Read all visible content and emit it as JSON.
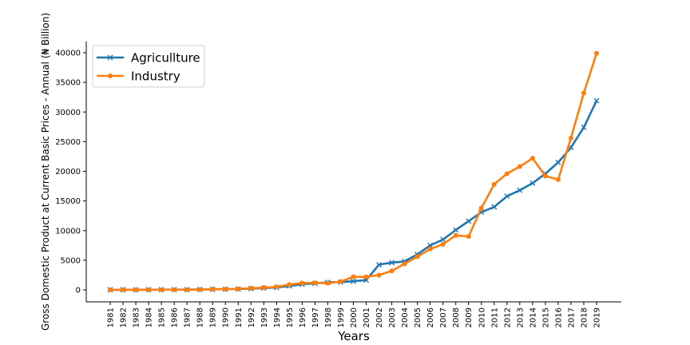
{
  "chart_data": {
    "type": "line",
    "xlabel": "Years",
    "ylabel": "Gross Domestic Product at Current Basic Prices - Annual (₦ Billion)",
    "x": [
      "1981",
      "1982",
      "1983",
      "1984",
      "1985",
      "1986",
      "1987",
      "1988",
      "1989",
      "1990",
      "1991",
      "1992",
      "1993",
      "1994",
      "1995",
      "1996",
      "1997",
      "1998",
      "1999",
      "2000",
      "2001",
      "2002",
      "2003",
      "2004",
      "2005",
      "2006",
      "2007",
      "2008",
      "2009",
      "2010",
      "2011",
      "2012",
      "2013",
      "2014",
      "2015",
      "2016",
      "2017",
      "2018",
      "2019"
    ],
    "ylim": [
      0,
      40000
    ],
    "yticks": [
      0,
      5000,
      10000,
      15000,
      20000,
      25000,
      30000,
      35000,
      40000
    ],
    "grid": false,
    "legend": "upper-left",
    "series": [
      {
        "name": "Agricullture",
        "color": "#1f77b4",
        "marker": "x",
        "values": [
          15,
          18,
          22,
          28,
          35,
          42,
          55,
          70,
          95,
          120,
          160,
          210,
          300,
          400,
          650,
          950,
          1100,
          1280,
          1320,
          1450,
          1650,
          4250,
          4600,
          4800,
          6000,
          7500,
          8500,
          10100,
          11600,
          13100,
          14000,
          15800,
          16800,
          18000,
          19600,
          21500,
          24000,
          27400,
          31900
        ]
      },
      {
        "name": "Industry",
        "color": "#ff7f0e",
        "marker": "o",
        "values": [
          10,
          12,
          15,
          18,
          22,
          25,
          30,
          45,
          110,
          120,
          170,
          280,
          380,
          500,
          900,
          1150,
          1200,
          1120,
          1400,
          2200,
          2200,
          2500,
          3200,
          4400,
          5600,
          6900,
          7700,
          9200,
          9000,
          13800,
          17800,
          19600,
          20800,
          22200,
          19200,
          18600,
          25600,
          33200,
          39900
        ]
      }
    ]
  }
}
